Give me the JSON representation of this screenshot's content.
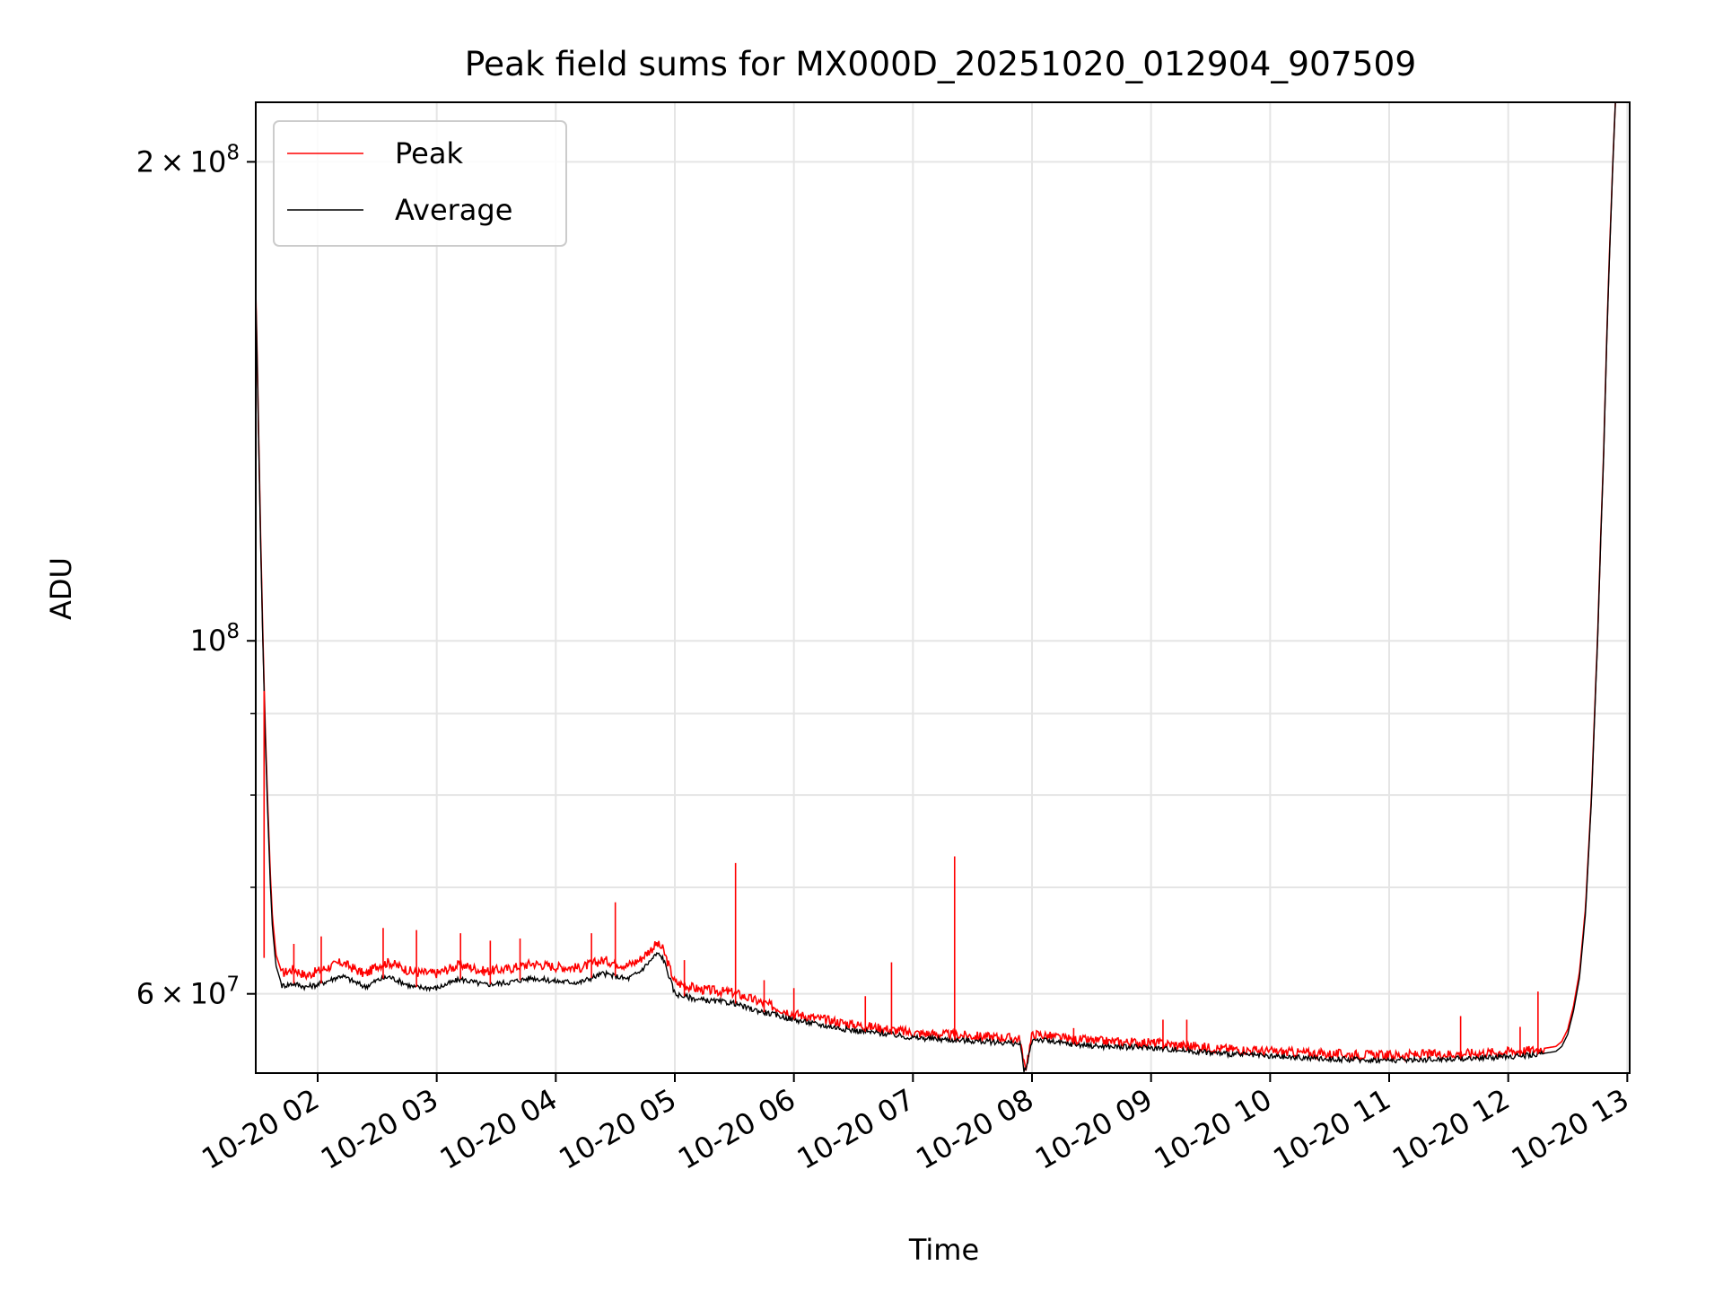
{
  "chart_data": {
    "type": "line",
    "title": "Peak field sums for MX000D_20251020_012904_907509",
    "xlabel": "Time",
    "ylabel": "ADU",
    "yscale": "log",
    "grid": true,
    "legend_position": "upper-left",
    "xlim_hours": [
      1.48,
      13.02
    ],
    "ylim": [
      53500000,
      218000000
    ],
    "x_ticks": [
      {
        "hour": 2,
        "label": "10-20 02"
      },
      {
        "hour": 3,
        "label": "10-20 03"
      },
      {
        "hour": 4,
        "label": "10-20 04"
      },
      {
        "hour": 5,
        "label": "10-20 05"
      },
      {
        "hour": 6,
        "label": "10-20 06"
      },
      {
        "hour": 7,
        "label": "10-20 07"
      },
      {
        "hour": 8,
        "label": "10-20 08"
      },
      {
        "hour": 9,
        "label": "10-20 09"
      },
      {
        "hour": 10,
        "label": "10-20 10"
      },
      {
        "hour": 11,
        "label": "10-20 11"
      },
      {
        "hour": 12,
        "label": "10-20 12"
      },
      {
        "hour": 13,
        "label": "10-20 13"
      }
    ],
    "y_ticks": [
      {
        "value": 60000000,
        "mantissa": "6",
        "exp": "7"
      },
      {
        "value": 100000000,
        "mantissa": "",
        "exp": "8"
      },
      {
        "value": 200000000,
        "mantissa": "2",
        "exp": "8"
      }
    ],
    "y_minor_ticks": [
      70000000,
      80000000,
      90000000
    ],
    "series": [
      {
        "name": "Peak",
        "color": "#ff0000",
        "x_hours": [
          1.48,
          1.5,
          1.52,
          1.54,
          1.56,
          1.58,
          1.6,
          1.62,
          1.65,
          1.7,
          1.8,
          1.9,
          2.0,
          2.2,
          2.4,
          2.5,
          2.6,
          2.8,
          3.0,
          3.2,
          3.4,
          3.6,
          3.8,
          4.0,
          4.2,
          4.4,
          4.6,
          4.7,
          4.8,
          4.85,
          4.9,
          4.95,
          5.0,
          5.2,
          5.4,
          5.5,
          5.6,
          5.8,
          6.0,
          6.2,
          6.5,
          6.8,
          7.0,
          7.2,
          7.4,
          7.6,
          7.8,
          7.9,
          7.93,
          7.95,
          8.0,
          8.03,
          8.1,
          8.3,
          8.6,
          9.0,
          9.5,
          10.0,
          10.5,
          11.0,
          11.5,
          11.8,
          12.0,
          12.2,
          12.4,
          12.45,
          12.5,
          12.55,
          12.6,
          12.65,
          12.7,
          12.75,
          12.8,
          12.85,
          12.9
        ],
        "y": [
          166000000,
          140000000,
          117000000,
          100000000,
          88000000,
          79000000,
          72000000,
          67000000,
          63500000,
          61800000,
          62200000,
          61600000,
          62000000,
          62800000,
          61700000,
          62500000,
          62800000,
          61900000,
          61800000,
          62600000,
          62000000,
          62200000,
          62700000,
          62400000,
          62300000,
          63000000,
          62500000,
          63000000,
          64000000,
          64500000,
          64000000,
          62500000,
          61000000,
          60400000,
          60200000,
          60100000,
          59700000,
          59000000,
          58300000,
          57900000,
          57400000,
          57000000,
          56700000,
          56600000,
          56500000,
          56400000,
          56300000,
          56200000,
          54200000,
          54000000,
          56500000,
          56600000,
          56500000,
          56200000,
          56000000,
          55900000,
          55500000,
          55200000,
          55000000,
          54900000,
          55000000,
          55100000,
          55200000,
          55300000,
          55600000,
          56000000,
          57000000,
          59000000,
          62000000,
          68000000,
          80000000,
          100000000,
          130000000,
          175000000,
          218000000
        ]
      },
      {
        "name": "Average",
        "color": "#000000",
        "x_hours": [
          1.48,
          1.5,
          1.52,
          1.54,
          1.56,
          1.58,
          1.6,
          1.62,
          1.65,
          1.7,
          1.8,
          1.9,
          2.0,
          2.2,
          2.4,
          2.5,
          2.6,
          2.8,
          3.0,
          3.2,
          3.4,
          3.6,
          3.8,
          4.0,
          4.2,
          4.4,
          4.6,
          4.7,
          4.8,
          4.85,
          4.9,
          4.95,
          5.0,
          5.2,
          5.4,
          5.5,
          5.6,
          5.8,
          6.0,
          6.2,
          6.5,
          6.8,
          7.0,
          7.2,
          7.4,
          7.6,
          7.8,
          7.9,
          7.93,
          7.95,
          8.0,
          8.03,
          8.1,
          8.3,
          8.6,
          9.0,
          9.5,
          10.0,
          10.5,
          11.0,
          11.5,
          11.8,
          12.0,
          12.2,
          12.4,
          12.45,
          12.5,
          12.55,
          12.6,
          12.65,
          12.7,
          12.75,
          12.8,
          12.85,
          12.9
        ],
        "y": [
          165000000,
          139000000,
          116000000,
          99000000,
          87000000,
          78000000,
          71000000,
          66000000,
          62500000,
          60700000,
          60900000,
          60600000,
          60800000,
          61600000,
          60600000,
          61200000,
          61500000,
          60600000,
          60500000,
          61300000,
          60800000,
          61000000,
          61400000,
          61100000,
          61000000,
          61800000,
          61300000,
          61900000,
          63000000,
          63600000,
          63200000,
          61600000,
          60000000,
          59500000,
          59300000,
          59200000,
          58800000,
          58300000,
          57800000,
          57400000,
          56900000,
          56600000,
          56300000,
          56200000,
          56100000,
          56000000,
          55900000,
          55800000,
          53800000,
          53700000,
          56100000,
          56200000,
          56100000,
          55800000,
          55600000,
          55500000,
          55100000,
          54800000,
          54600000,
          54500000,
          54600000,
          54700000,
          54800000,
          54900000,
          55200000,
          55600000,
          56600000,
          58600000,
          61500000,
          67500000,
          79500000,
          99500000,
          129500000,
          174000000,
          218000000
        ]
      }
    ],
    "spikes": [
      {
        "hour": 1.55,
        "peak": 63200000
      },
      {
        "hour": 1.8,
        "peak": 64500000
      },
      {
        "hour": 2.03,
        "peak": 65200000
      },
      {
        "hour": 2.55,
        "peak": 66000000
      },
      {
        "hour": 2.83,
        "peak": 65800000
      },
      {
        "hour": 3.2,
        "peak": 65500000
      },
      {
        "hour": 3.45,
        "peak": 64800000
      },
      {
        "hour": 3.7,
        "peak": 65000000
      },
      {
        "hour": 4.3,
        "peak": 65500000
      },
      {
        "hour": 4.5,
        "peak": 68500000
      },
      {
        "hour": 5.08,
        "peak": 63000000
      },
      {
        "hour": 5.51,
        "peak": 72500000
      },
      {
        "hour": 5.75,
        "peak": 61200000
      },
      {
        "hour": 6.0,
        "peak": 60500000
      },
      {
        "hour": 6.6,
        "peak": 59800000
      },
      {
        "hour": 6.82,
        "peak": 62800000
      },
      {
        "hour": 7.35,
        "peak": 73200000
      },
      {
        "hour": 8.35,
        "peak": 57100000
      },
      {
        "hour": 9.1,
        "peak": 57800000
      },
      {
        "hour": 9.3,
        "peak": 57800000
      },
      {
        "hour": 11.6,
        "peak": 58100000
      },
      {
        "hour": 12.1,
        "peak": 57200000
      },
      {
        "hour": 12.25,
        "peak": 60200000
      }
    ]
  }
}
